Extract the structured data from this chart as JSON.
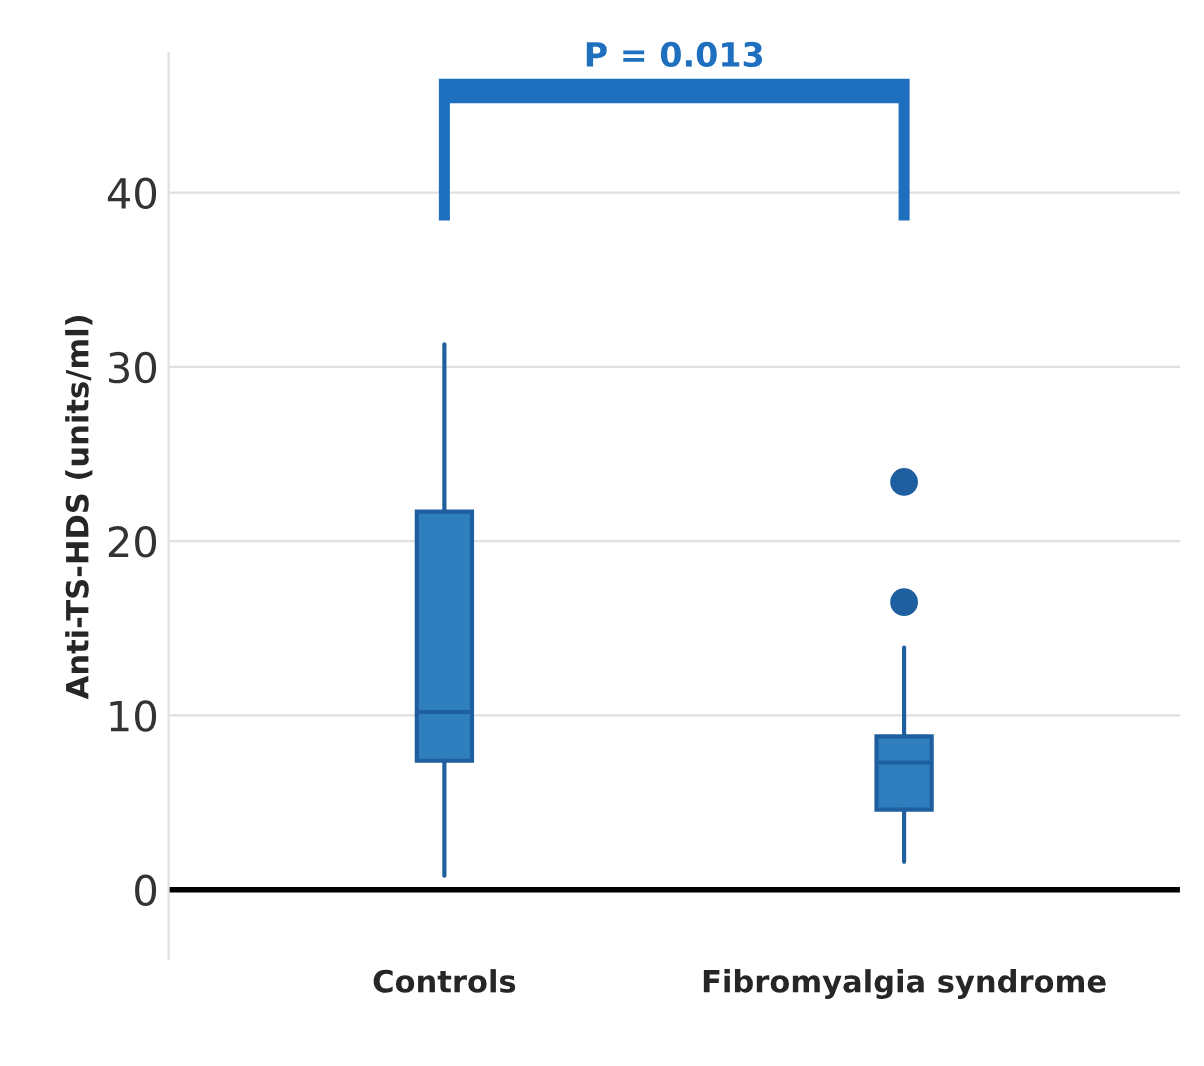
{
  "chart_data": {
    "type": "box",
    "ylabel": "Anti-TS-HDS (units/ml)",
    "categories": [
      "Controls",
      "Fibromyalgia syndrome"
    ],
    "boxes": [
      {
        "low": 0.8,
        "q1": 7.4,
        "median": 10.2,
        "q3": 21.7,
        "high": 31.3
      },
      {
        "low": 1.6,
        "q1": 4.6,
        "median": 7.3,
        "q3": 8.8,
        "high": 13.9,
        "outliers": [
          16.5,
          23.4
        ]
      }
    ],
    "color": "#2f7fbf",
    "ylim": [
      -4,
      48
    ],
    "yticks": [
      0,
      10,
      20,
      30,
      40
    ],
    "grid": "y",
    "annotations": [
      "P = 0.013"
    ]
  }
}
